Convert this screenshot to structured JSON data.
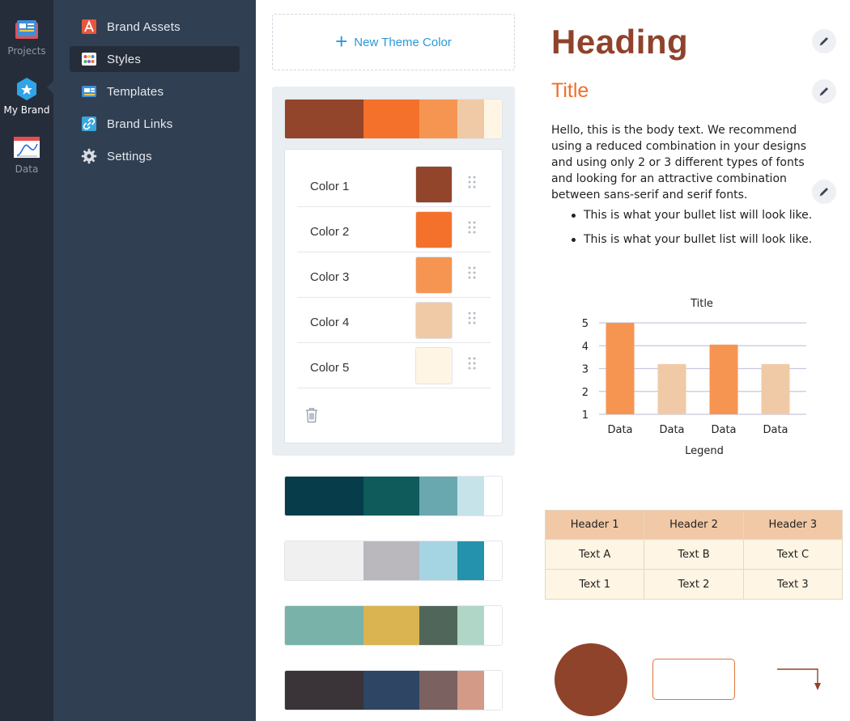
{
  "rail": {
    "items": [
      {
        "label": "Projects",
        "icon": "projects-icon"
      },
      {
        "label": "My Brand",
        "icon": "my-brand-icon"
      },
      {
        "label": "Data",
        "icon": "data-icon"
      }
    ],
    "active": "My Brand"
  },
  "menu": {
    "items": [
      {
        "label": "Brand Assets",
        "icon": "brand-assets-icon"
      },
      {
        "label": "Styles",
        "icon": "styles-icon"
      },
      {
        "label": "Templates",
        "icon": "templates-icon"
      },
      {
        "label": "Brand Links",
        "icon": "brand-links-icon"
      },
      {
        "label": "Settings",
        "icon": "settings-icon"
      }
    ],
    "active": "Styles"
  },
  "palette": {
    "new_color_label": "New Theme Color",
    "active_strip": [
      "#92452b",
      "#f3712b",
      "#f69551",
      "#f0caa6",
      "#fff5e4"
    ],
    "colors": [
      {
        "name": "Color 1",
        "hex": "#92452b"
      },
      {
        "name": "Color 2",
        "hex": "#f3712b"
      },
      {
        "name": "Color 3",
        "hex": "#f69551"
      },
      {
        "name": "Color 4",
        "hex": "#f0caa6"
      },
      {
        "name": "Color 5",
        "hex": "#fff5e4"
      }
    ],
    "other_strips": [
      [
        "#073d4a",
        "#0f5a5b",
        "#6aa8b0",
        "#c7e3ea",
        "#ffffff"
      ],
      [
        "#f0f0f0",
        "#bab8bd",
        "#a5d5e3",
        "#2492ad",
        "#ffffff"
      ],
      [
        "#78b2a8",
        "#d9b451",
        "#51665a",
        "#b0d6c7",
        "#ffffff"
      ],
      [
        "#3a3338",
        "#2e4564",
        "#7b615f",
        "#d39a88",
        "#ffffff"
      ]
    ]
  },
  "preview": {
    "heading": "Heading",
    "title": "Title",
    "body": "Hello, this is the body text. We recommend using a reduced combination in your designs and using only 2 or 3 different types of fonts and looking for an attractive combination between sans-serif and serif fonts.",
    "bullets": [
      "This is what your bullet list will look like.",
      "This is what your bullet list will look like."
    ],
    "table": {
      "headers": [
        "Header 1",
        "Header 2",
        "Header 3"
      ],
      "rows": [
        [
          "Text A",
          "Text B",
          "Text C"
        ],
        [
          "Text 1",
          "Text 2",
          "Text 3"
        ]
      ]
    },
    "shape_colors": {
      "circle": "#8f432a",
      "rect_border": "#e0753a",
      "connector": "#8f432a"
    }
  },
  "chart_data": {
    "type": "bar",
    "title": "Title",
    "xlabel": "Legend",
    "ylabel": "",
    "categories": [
      "Data",
      "Data",
      "Data",
      "Data"
    ],
    "values": [
      5,
      3.2,
      4.05,
      3.2
    ],
    "ylim": [
      1,
      5
    ],
    "yticks": [
      1,
      2,
      3,
      4,
      5
    ],
    "bar_colors": [
      "#f69551",
      "#f0caa6",
      "#f69551",
      "#f0caa6"
    ],
    "grid": true
  }
}
